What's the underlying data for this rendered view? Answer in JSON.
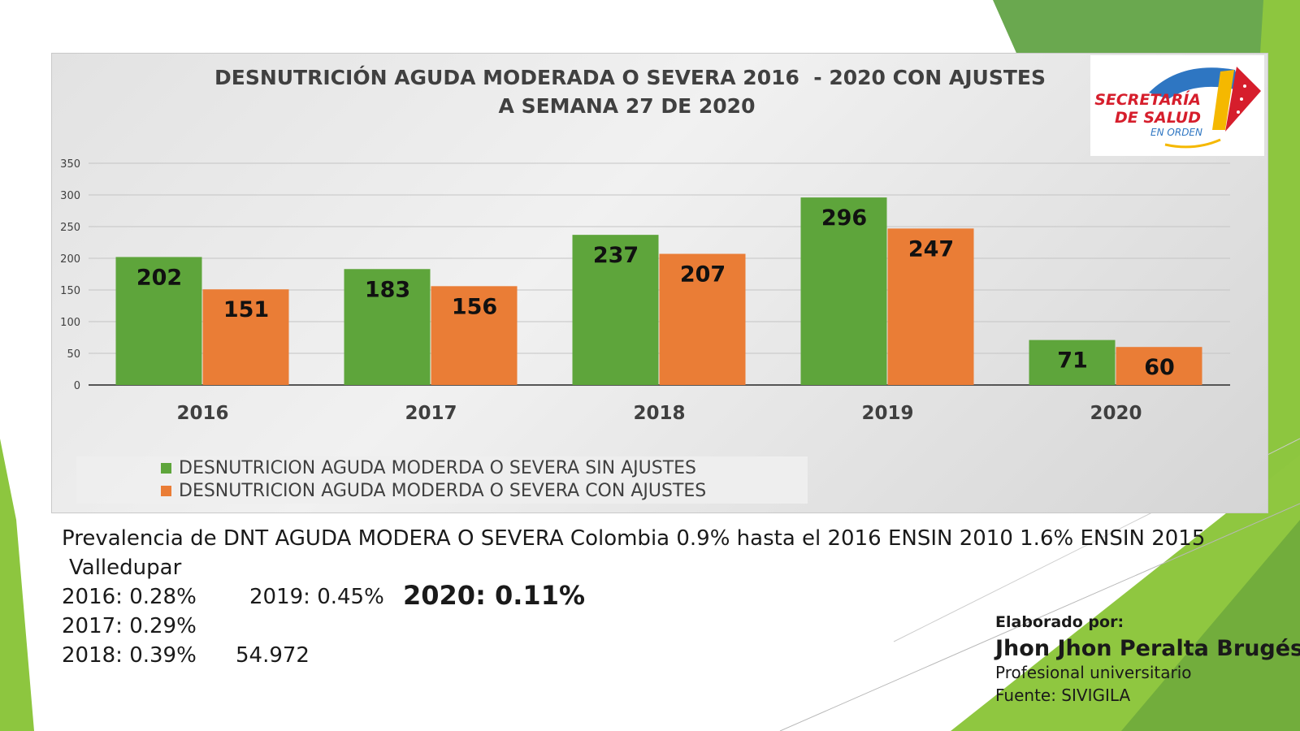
{
  "slide": {
    "background_colors": {
      "light_green": "#8dc63f",
      "mid_green": "#7ab648",
      "dark_green": "#5e9a35"
    }
  },
  "logo": {
    "line1": "SECRETARÍA",
    "line2": "DE SALUD",
    "line3": "EN ORDEN",
    "colors": {
      "red": "#d61e2c",
      "blue": "#2e76c2",
      "yellow": "#f5b800"
    }
  },
  "chart_data": {
    "type": "bar",
    "title": [
      "DESNUTRICIÓN AGUDA MODERADA O SEVERA 2016  - 2020 CON AJUSTES",
      "A SEMANA 27 DE 2020"
    ],
    "categories": [
      "2016",
      "2017",
      "2018",
      "2019",
      "2020"
    ],
    "series": [
      {
        "name": "DESNUTRICION AGUDA MODERDA O SEVERA SIN AJUSTES",
        "values": [
          202,
          183,
          237,
          296,
          71
        ],
        "color": "#5ea53b"
      },
      {
        "name": "DESNUTRICION AGUDA MODERDA O SEVERA CON AJUSTES",
        "values": [
          151,
          156,
          207,
          247,
          60
        ],
        "color": "#ea7d36"
      }
    ],
    "ylim": [
      0,
      350
    ],
    "yticks": [
      0,
      50,
      100,
      150,
      200,
      250,
      300,
      350
    ],
    "ytick_labels": [
      "0",
      "50",
      "100",
      "150",
      "200",
      "250",
      "300",
      "350"
    ],
    "xlabel": "",
    "ylabel": "",
    "grid": true,
    "legend_position": "bottom-left"
  },
  "text_block": {
    "line1": "Prevalencia de DNT AGUDA MODERA O SEVERA Colombia 0.9% hasta el 2016 ENSIN 2010     1.6% ENSIN 2015",
    "line2": "Valledupar",
    "y2016": "2016: 0.28%",
    "y2019": "2019: 0.45%",
    "y2020": "2020: 0.11%",
    "y2017": "2017: 0.29%",
    "y2018": "2018: 0.39%",
    "population": "54.972"
  },
  "author": {
    "label": "Elaborado por:",
    "name": "Jhon Jhon Peralta Brugés",
    "role": "Profesional universitario",
    "source": "Fuente: SIVIGILA"
  }
}
